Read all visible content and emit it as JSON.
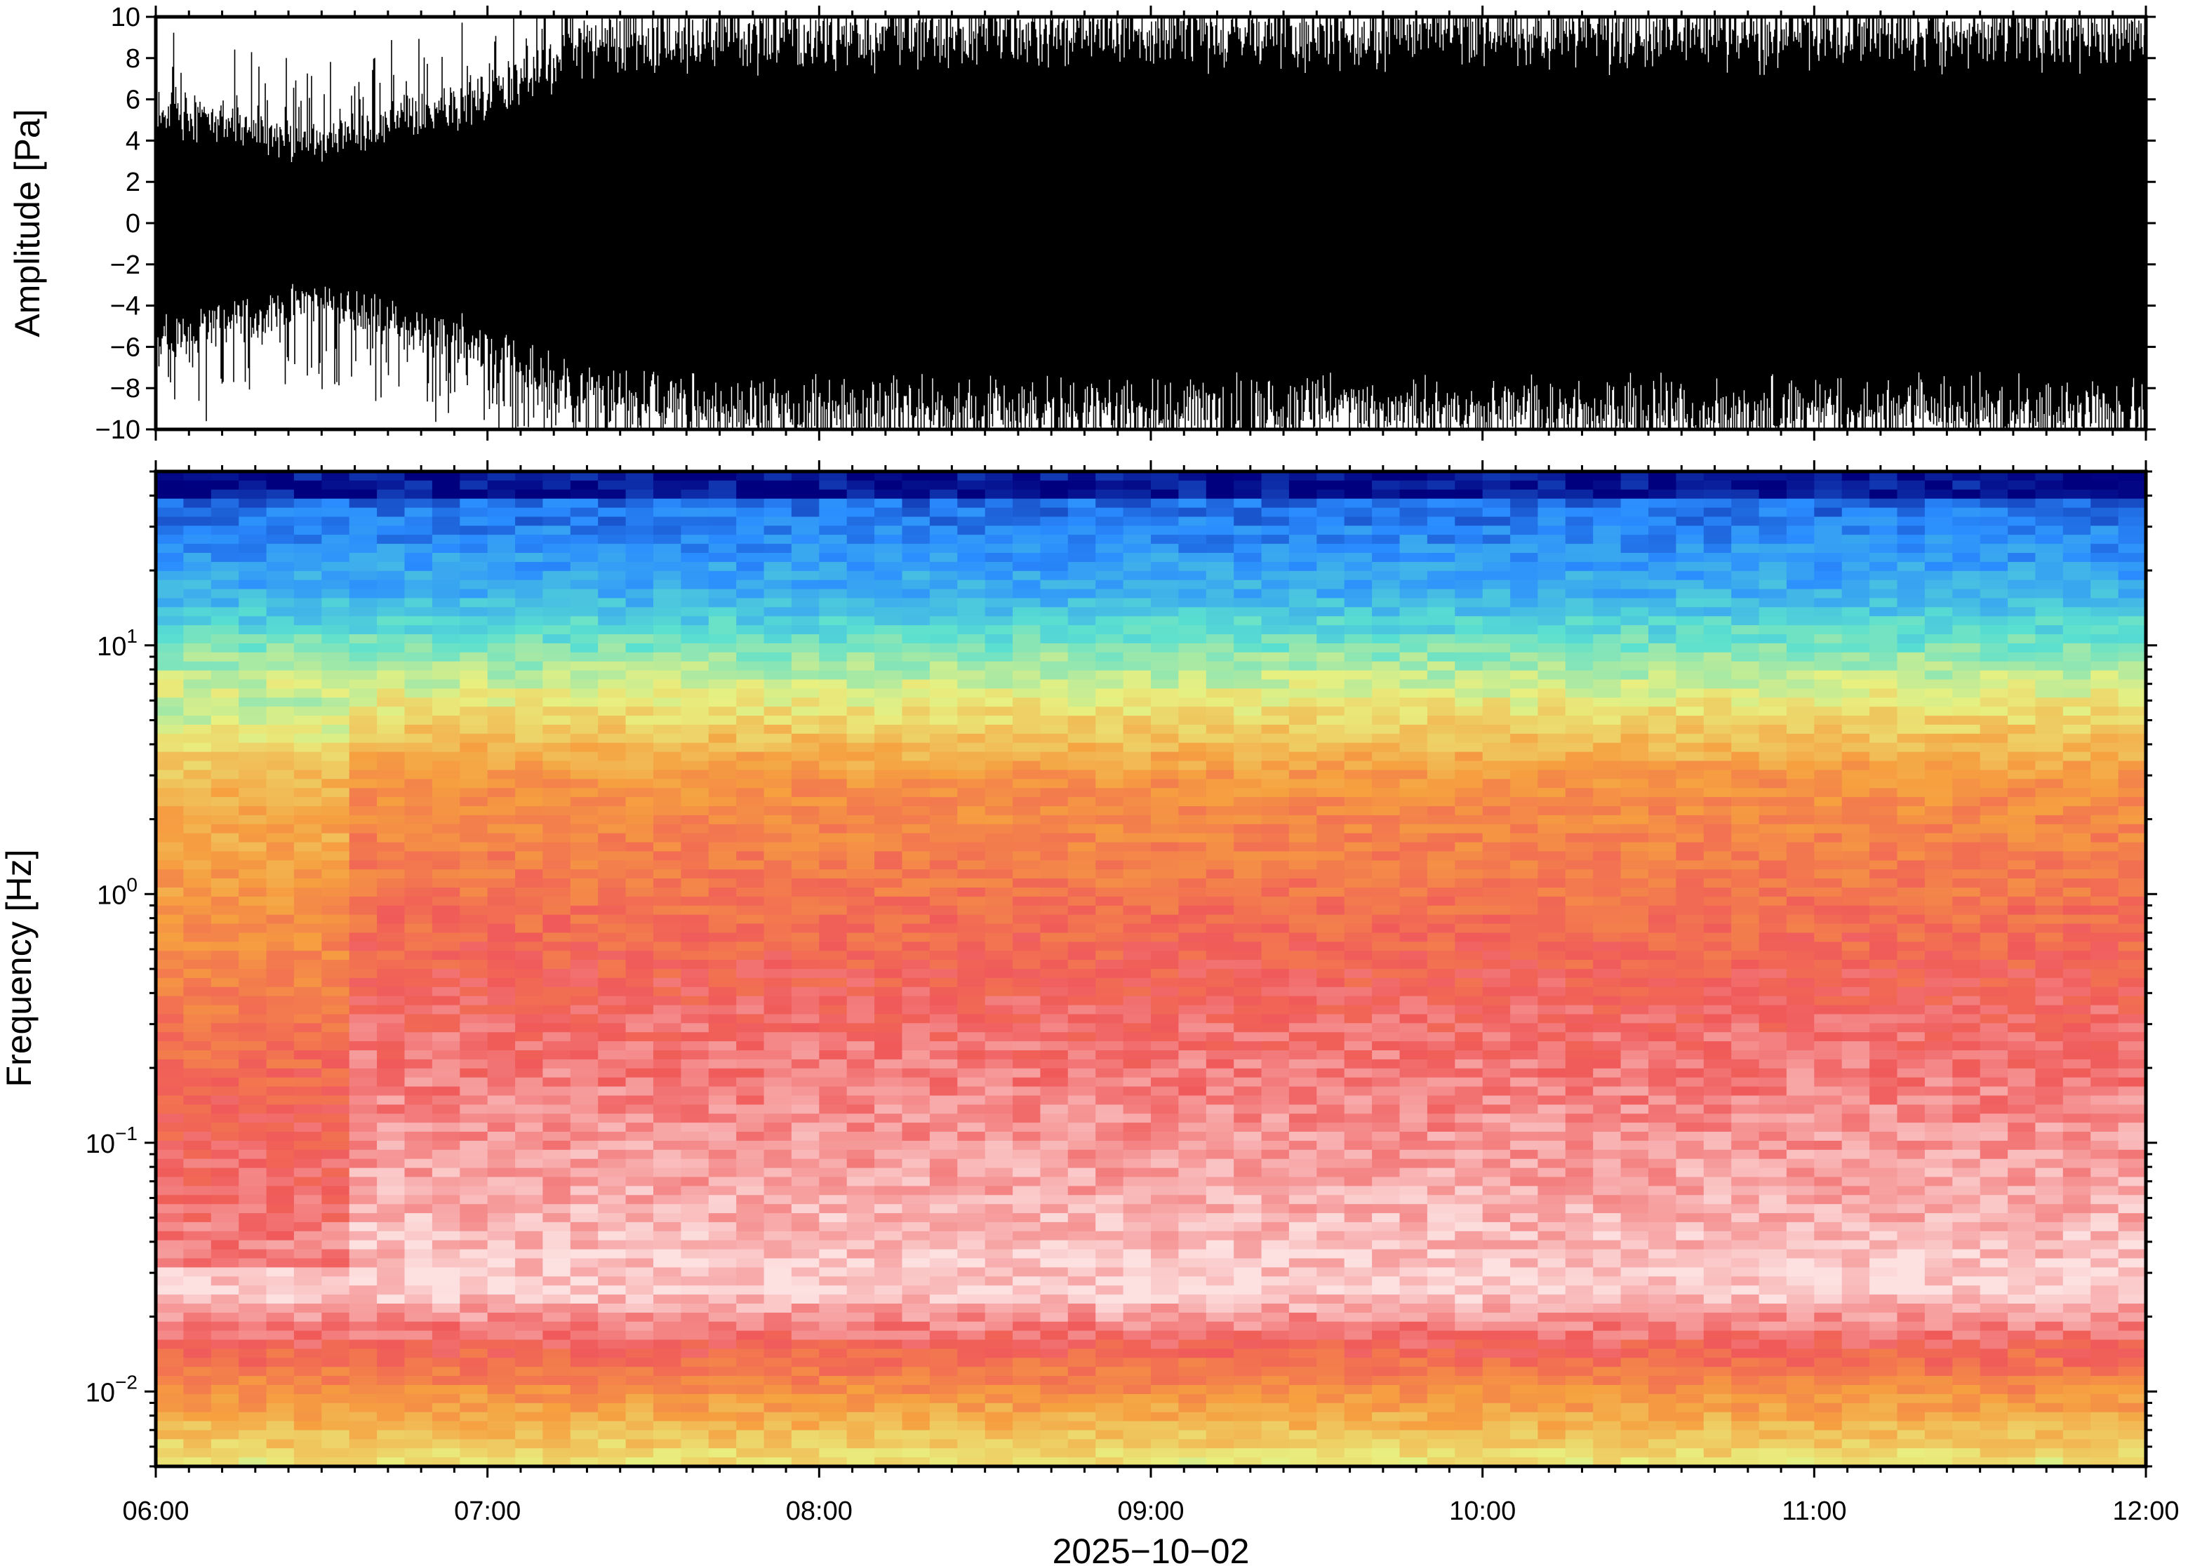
{
  "chart_data": [
    {
      "type": "line",
      "ylabel": "Amplitude [Pa]",
      "ylim": [
        -10,
        10
      ],
      "yticks": [
        "10",
        "8",
        "6",
        "4",
        "2",
        "0",
        "−2",
        "−4",
        "−6",
        "−8",
        "−10"
      ],
      "ytick_values": [
        10,
        8,
        6,
        4,
        2,
        0,
        -2,
        -4,
        -6,
        -8,
        -10
      ],
      "series": [
        {
          "values_desc": "",
          "x_hours": [
            6.0,
            6.25,
            6.5,
            6.75,
            7.0,
            7.25,
            7.5,
            8.0,
            8.5,
            9.0,
            9.5,
            10.0,
            10.5,
            11.0,
            11.5,
            12.0
          ],
          "upper_envelope": [
            5.5,
            4.5,
            3.5,
            5.0,
            6.0,
            8.5,
            9.0,
            9.5,
            9.5,
            9.5,
            9.5,
            9.5,
            9.5,
            9.5,
            9.5,
            9.5
          ],
          "lower_envelope": [
            -5.5,
            -4.5,
            -3.5,
            -5.0,
            -6.0,
            -8.5,
            -9.0,
            -9.5,
            -9.5,
            -9.5,
            -9.5,
            -9.5,
            -9.5,
            -9.5,
            -9.5,
            -9.5
          ]
        }
      ],
      "grid": false
    },
    {
      "type": "heatmap",
      "ylabel": "Frequency [Hz]",
      "xlabel": "2025−10−02",
      "yscale": "log",
      "ylim": [
        0.005,
        50
      ],
      "ytick_values": [
        10,
        1,
        0.1,
        0.01
      ],
      "ytick_labels": [
        {
          "base": "10",
          "exp": "1"
        },
        {
          "base": "10",
          "exp": "0"
        },
        {
          "base": "10",
          "exp": "−1"
        },
        {
          "base": "10",
          "exp": "−2"
        }
      ],
      "xlim_hours": [
        6,
        12
      ],
      "xtick_hours": [
        6,
        7,
        8,
        9,
        10,
        11,
        12
      ],
      "xtick_labels": [
        "06:00",
        "07:00",
        "08:00",
        "09:00",
        "10:00",
        "11:00",
        "12:00"
      ],
      "colormap_stops": [
        "#00007f",
        "#2a8cff",
        "#5ae0d0",
        "#e8f080",
        "#f6a040",
        "#f05a5a",
        "#fde0e0"
      ],
      "grid": false
    }
  ]
}
